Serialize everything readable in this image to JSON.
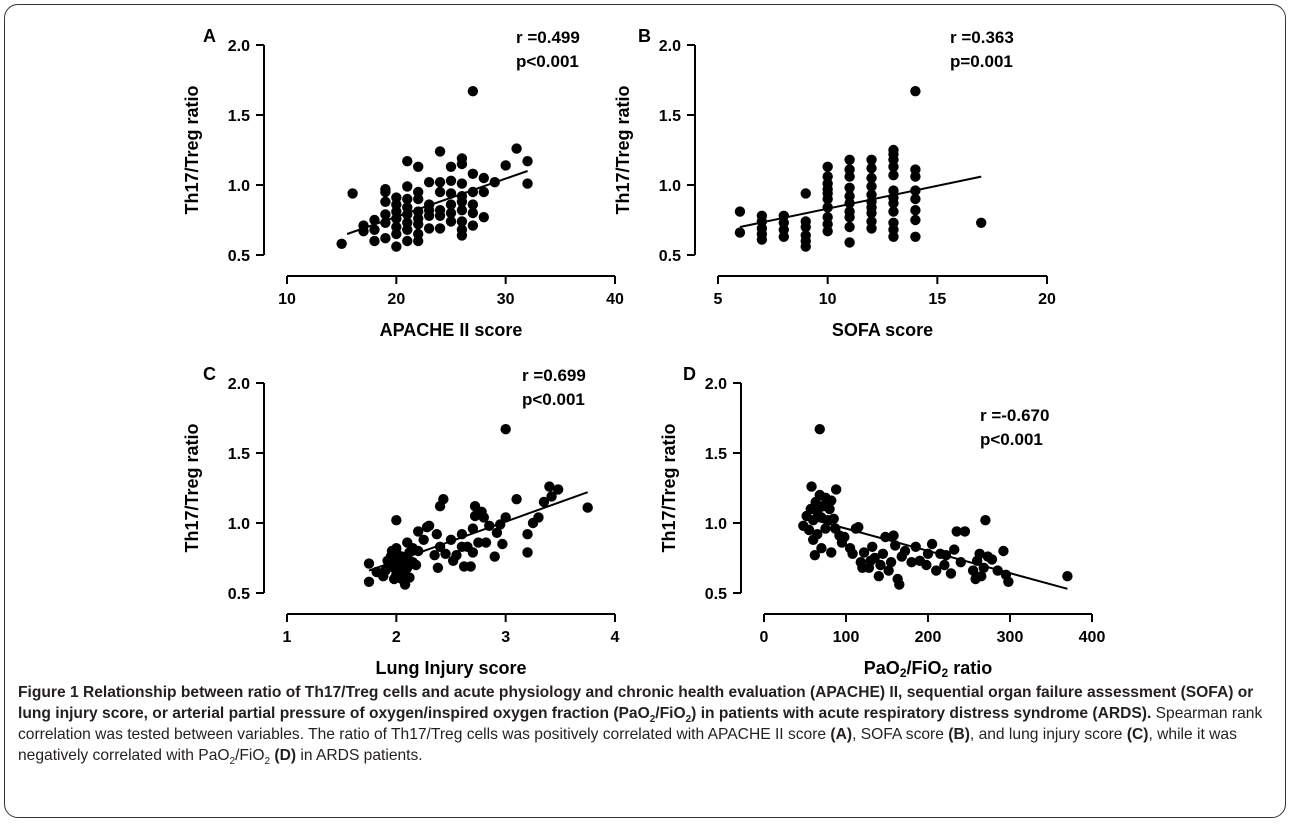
{
  "chart_data": [
    {
      "type": "scatter",
      "panel_label": "A",
      "xlabel": "APACHE II score",
      "ylabel": "Th17/Treg ratio",
      "xlim": [
        10,
        40
      ],
      "ylim": [
        0.5,
        2.0
      ],
      "xticks": [
        "10",
        "20",
        "30",
        "40"
      ],
      "yticks": [
        "0.5",
        "1.0",
        "1.5",
        "2.0"
      ],
      "stat_r": "r =0.499",
      "stat_p": "p<0.001",
      "trend_line": [
        [
          15.5,
          0.65
        ],
        [
          32,
          1.1
        ]
      ],
      "points": [
        [
          15,
          0.58
        ],
        [
          16,
          0.94
        ],
        [
          17,
          0.67
        ],
        [
          17,
          0.71
        ],
        [
          18,
          0.6
        ],
        [
          18,
          0.68
        ],
        [
          18,
          0.75
        ],
        [
          19,
          0.62
        ],
        [
          19,
          0.73
        ],
        [
          19,
          0.79
        ],
        [
          19,
          0.88
        ],
        [
          19,
          0.95
        ],
        [
          19,
          0.97
        ],
        [
          20,
          0.56
        ],
        [
          20,
          0.65
        ],
        [
          20,
          0.7
        ],
        [
          20,
          0.76
        ],
        [
          20,
          0.81
        ],
        [
          20,
          0.86
        ],
        [
          20,
          0.91
        ],
        [
          21,
          0.6
        ],
        [
          21,
          0.68
        ],
        [
          21,
          0.73
        ],
        [
          21,
          0.79
        ],
        [
          21,
          0.84
        ],
        [
          21,
          0.9
        ],
        [
          21,
          0.99
        ],
        [
          21,
          1.17
        ],
        [
          22,
          0.6
        ],
        [
          22,
          0.65
        ],
        [
          22,
          0.72
        ],
        [
          22,
          0.76
        ],
        [
          22,
          0.81
        ],
        [
          22,
          0.9
        ],
        [
          22,
          0.95
        ],
        [
          22,
          1.13
        ],
        [
          23,
          0.69
        ],
        [
          23,
          0.78
        ],
        [
          23,
          0.82
        ],
        [
          23,
          0.86
        ],
        [
          23,
          1.02
        ],
        [
          24,
          0.69
        ],
        [
          24,
          0.78
        ],
        [
          24,
          0.82
        ],
        [
          24,
          0.95
        ],
        [
          24,
          1.02
        ],
        [
          24,
          1.24
        ],
        [
          25,
          0.74
        ],
        [
          25,
          0.8
        ],
        [
          25,
          0.86
        ],
        [
          25,
          0.94
        ],
        [
          25,
          1.03
        ],
        [
          25,
          1.13
        ],
        [
          26,
          0.64
        ],
        [
          26,
          0.68
        ],
        [
          26,
          0.74
        ],
        [
          26,
          0.82
        ],
        [
          26,
          0.88
        ],
        [
          26,
          0.92
        ],
        [
          26,
          1.01
        ],
        [
          26,
          1.15
        ],
        [
          26,
          1.19
        ],
        [
          27,
          0.71
        ],
        [
          27,
          0.8
        ],
        [
          27,
          0.86
        ],
        [
          27,
          0.95
        ],
        [
          27,
          1.08
        ],
        [
          27,
          1.67
        ],
        [
          28,
          0.77
        ],
        [
          28,
          0.95
        ],
        [
          28,
          1.05
        ],
        [
          29,
          1.02
        ],
        [
          30,
          1.14
        ],
        [
          31,
          1.26
        ],
        [
          32,
          1.01
        ],
        [
          32,
          1.17
        ]
      ]
    },
    {
      "type": "scatter",
      "panel_label": "B",
      "xlabel": "SOFA score",
      "ylabel": "Th17/Treg ratio",
      "xlim": [
        5,
        20
      ],
      "ylim": [
        0.5,
        2.0
      ],
      "xticks": [
        "5",
        "10",
        "15",
        "20"
      ],
      "yticks": [
        "0.5",
        "1.0",
        "1.5",
        "2.0"
      ],
      "stat_r": "r =0.363",
      "stat_p": "p=0.001",
      "trend_line": [
        [
          6,
          0.7
        ],
        [
          17,
          1.06
        ]
      ],
      "points": [
        [
          6,
          0.66
        ],
        [
          6,
          0.81
        ],
        [
          7,
          0.61
        ],
        [
          7,
          0.65
        ],
        [
          7,
          0.69
        ],
        [
          7,
          0.74
        ],
        [
          7,
          0.78
        ],
        [
          8,
          0.63
        ],
        [
          8,
          0.68
        ],
        [
          8,
          0.73
        ],
        [
          8,
          0.78
        ],
        [
          9,
          0.56
        ],
        [
          9,
          0.6
        ],
        [
          9,
          0.64
        ],
        [
          9,
          0.7
        ],
        [
          9,
          0.74
        ],
        [
          9,
          0.94
        ],
        [
          10,
          0.67
        ],
        [
          10,
          0.72
        ],
        [
          10,
          0.77
        ],
        [
          10,
          0.84
        ],
        [
          10,
          0.9
        ],
        [
          10,
          0.94
        ],
        [
          10,
          0.97
        ],
        [
          10,
          1.01
        ],
        [
          10,
          1.06
        ],
        [
          10,
          1.13
        ],
        [
          11,
          0.59
        ],
        [
          11,
          0.7
        ],
        [
          11,
          0.77
        ],
        [
          11,
          0.81
        ],
        [
          11,
          0.87
        ],
        [
          11,
          0.92
        ],
        [
          11,
          0.98
        ],
        [
          11,
          1.06
        ],
        [
          11,
          1.11
        ],
        [
          11,
          1.18
        ],
        [
          12,
          0.69
        ],
        [
          12,
          0.74
        ],
        [
          12,
          0.8
        ],
        [
          12,
          0.84
        ],
        [
          12,
          0.88
        ],
        [
          12,
          0.93
        ],
        [
          12,
          0.99
        ],
        [
          12,
          1.05
        ],
        [
          12,
          1.12
        ],
        [
          12,
          1.18
        ],
        [
          13,
          0.63
        ],
        [
          13,
          0.68
        ],
        [
          13,
          0.73
        ],
        [
          13,
          0.81
        ],
        [
          13,
          0.87
        ],
        [
          13,
          0.91
        ],
        [
          13,
          0.96
        ],
        [
          13,
          1.07
        ],
        [
          13,
          1.13
        ],
        [
          13,
          1.18
        ],
        [
          13,
          1.22
        ],
        [
          13,
          1.25
        ],
        [
          14,
          0.63
        ],
        [
          14,
          0.75
        ],
        [
          14,
          0.82
        ],
        [
          14,
          0.9
        ],
        [
          14,
          0.96
        ],
        [
          14,
          1.06
        ],
        [
          14,
          1.11
        ],
        [
          14,
          1.67
        ],
        [
          17,
          0.73
        ]
      ]
    },
    {
      "type": "scatter",
      "panel_label": "C",
      "xlabel": "Lung Injury score",
      "ylabel": "Th17/Treg ratio",
      "xlim": [
        1,
        4
      ],
      "ylim": [
        0.5,
        2.0
      ],
      "xticks": [
        "1",
        "2",
        "3",
        "4"
      ],
      "yticks": [
        "0.5",
        "1.0",
        "1.5",
        "2.0"
      ],
      "stat_r": "r =0.699",
      "stat_p": "p<0.001",
      "trend_line": [
        [
          1.75,
          0.66
        ],
        [
          3.75,
          1.22
        ]
      ],
      "points": [
        [
          1.75,
          0.58
        ],
        [
          1.75,
          0.71
        ],
        [
          1.82,
          0.65
        ],
        [
          1.88,
          0.62
        ],
        [
          1.9,
          0.66
        ],
        [
          1.92,
          0.73
        ],
        [
          1.94,
          0.69
        ],
        [
          1.95,
          0.76
        ],
        [
          1.96,
          0.8
        ],
        [
          1.98,
          0.6
        ],
        [
          1.98,
          0.68
        ],
        [
          2.0,
          0.63
        ],
        [
          2.0,
          0.72
        ],
        [
          2.0,
          0.79
        ],
        [
          2.0,
          0.82
        ],
        [
          2.0,
          1.02
        ],
        [
          2.03,
          0.66
        ],
        [
          2.05,
          0.6
        ],
        [
          2.05,
          0.7
        ],
        [
          2.05,
          0.76
        ],
        [
          2.08,
          0.56
        ],
        [
          2.08,
          0.64
        ],
        [
          2.1,
          0.68
        ],
        [
          2.1,
          0.73
        ],
        [
          2.1,
          0.86
        ],
        [
          2.12,
          0.61
        ],
        [
          2.12,
          0.79
        ],
        [
          2.15,
          0.72
        ],
        [
          2.15,
          0.82
        ],
        [
          2.18,
          0.7
        ],
        [
          2.2,
          0.8
        ],
        [
          2.2,
          0.94
        ],
        [
          2.25,
          0.88
        ],
        [
          2.28,
          0.97
        ],
        [
          2.3,
          0.98
        ],
        [
          2.35,
          0.77
        ],
        [
          2.37,
          0.92
        ],
        [
          2.38,
          0.68
        ],
        [
          2.4,
          0.83
        ],
        [
          2.4,
          1.12
        ],
        [
          2.43,
          1.17
        ],
        [
          2.45,
          0.78
        ],
        [
          2.5,
          0.88
        ],
        [
          2.52,
          0.73
        ],
        [
          2.55,
          0.77
        ],
        [
          2.6,
          0.83
        ],
        [
          2.6,
          0.92
        ],
        [
          2.62,
          0.69
        ],
        [
          2.65,
          0.83
        ],
        [
          2.68,
          0.69
        ],
        [
          2.7,
          0.79
        ],
        [
          2.7,
          0.96
        ],
        [
          2.72,
          1.05
        ],
        [
          2.72,
          1.12
        ],
        [
          2.75,
          0.86
        ],
        [
          2.78,
          1.08
        ],
        [
          2.8,
          1.04
        ],
        [
          2.82,
          0.86
        ],
        [
          2.85,
          0.98
        ],
        [
          2.9,
          0.76
        ],
        [
          2.92,
          0.93
        ],
        [
          2.95,
          0.99
        ],
        [
          2.97,
          0.85
        ],
        [
          3.0,
          1.04
        ],
        [
          3.0,
          1.67
        ],
        [
          3.1,
          1.17
        ],
        [
          3.2,
          0.79
        ],
        [
          3.2,
          0.92
        ],
        [
          3.25,
          1.0
        ],
        [
          3.3,
          1.04
        ],
        [
          3.35,
          1.15
        ],
        [
          3.4,
          1.26
        ],
        [
          3.42,
          1.19
        ],
        [
          3.48,
          1.24
        ],
        [
          3.75,
          1.11
        ]
      ]
    },
    {
      "type": "scatter",
      "panel_label": "D",
      "xlabel": "PaO2/FiO2 ratio",
      "xlabel_parts": [
        "PaO",
        "2",
        "/FiO",
        "2",
        " ratio"
      ],
      "ylabel": "Th17/Treg ratio",
      "xlim": [
        0,
        400
      ],
      "ylim": [
        0.5,
        2.0
      ],
      "xticks": [
        "0",
        "100",
        "200",
        "300",
        "400"
      ],
      "yticks": [
        "0.5",
        "1.0",
        "1.5",
        "2.0"
      ],
      "stat_r": "r =-0.670",
      "stat_p": "p<0.001",
      "trend_line": [
        [
          50,
          1.04
        ],
        [
          370,
          0.53
        ]
      ],
      "points": [
        [
          48,
          0.98
        ],
        [
          52,
          1.05
        ],
        [
          55,
          0.95
        ],
        [
          57,
          1.1
        ],
        [
          58,
          1.26
        ],
        [
          60,
          0.88
        ],
        [
          60,
          1.02
        ],
        [
          62,
          0.77
        ],
        [
          63,
          1.15
        ],
        [
          65,
          0.92
        ],
        [
          65,
          1.08
        ],
        [
          68,
          1.2
        ],
        [
          68,
          1.67
        ],
        [
          70,
          0.82
        ],
        [
          70,
          1.04
        ],
        [
          72,
          1.12
        ],
        [
          75,
          0.96
        ],
        [
          75,
          1.18
        ],
        [
          78,
          1.02
        ],
        [
          80,
          1.1
        ],
        [
          82,
          0.79
        ],
        [
          82,
          1.16
        ],
        [
          85,
          1.03
        ],
        [
          87,
          0.96
        ],
        [
          88,
          1.24
        ],
        [
          92,
          0.91
        ],
        [
          95,
          0.86
        ],
        [
          98,
          0.9
        ],
        [
          105,
          0.82
        ],
        [
          108,
          0.78
        ],
        [
          112,
          0.96
        ],
        [
          115,
          0.97
        ],
        [
          118,
          0.72
        ],
        [
          120,
          0.68
        ],
        [
          122,
          0.79
        ],
        [
          128,
          0.68
        ],
        [
          130,
          0.73
        ],
        [
          132,
          0.83
        ],
        [
          135,
          0.75
        ],
        [
          140,
          0.62
        ],
        [
          142,
          0.7
        ],
        [
          145,
          0.78
        ],
        [
          148,
          0.9
        ],
        [
          152,
          0.66
        ],
        [
          155,
          0.72
        ],
        [
          158,
          0.91
        ],
        [
          160,
          0.84
        ],
        [
          163,
          0.6
        ],
        [
          165,
          0.56
        ],
        [
          168,
          0.76
        ],
        [
          172,
          0.8
        ],
        [
          180,
          0.72
        ],
        [
          185,
          0.83
        ],
        [
          190,
          0.73
        ],
        [
          198,
          0.7
        ],
        [
          200,
          0.78
        ],
        [
          205,
          0.85
        ],
        [
          210,
          0.66
        ],
        [
          215,
          0.78
        ],
        [
          220,
          0.7
        ],
        [
          222,
          0.77
        ],
        [
          228,
          0.64
        ],
        [
          232,
          0.81
        ],
        [
          235,
          0.94
        ],
        [
          240,
          0.72
        ],
        [
          245,
          0.94
        ],
        [
          255,
          0.66
        ],
        [
          258,
          0.6
        ],
        [
          260,
          0.73
        ],
        [
          263,
          0.78
        ],
        [
          265,
          0.62
        ],
        [
          268,
          0.68
        ],
        [
          270,
          1.02
        ],
        [
          273,
          0.76
        ],
        [
          278,
          0.74
        ],
        [
          285,
          0.66
        ],
        [
          292,
          0.8
        ],
        [
          295,
          0.63
        ],
        [
          298,
          0.58
        ],
        [
          370,
          0.62
        ]
      ]
    }
  ],
  "caption": {
    "fig_label": "Figure 1",
    "bold_parts": [
      " Relationship between ratio of Th17/Treg cells and acute physiology and chronic health evaluation (APACHE) II, sequential organ failure assessment (SOFA) or lung injury score, or arterial partial pressure of oxygen/inspired oxygen fraction (PaO",
      "2",
      "/FiO",
      "2",
      ") in patients with acute respiratory distress syndrome (ARDS)."
    ],
    "normal_parts": [
      " Spearman rank correlation was tested between variables. The ratio of Th17/Treg cells was positively correlated with APACHE II score ",
      "(A)",
      ", SOFA score ",
      "(B)",
      ", and lung injury score ",
      "(C)",
      ", while it was negatively correlated with PaO",
      "2",
      "/FiO",
      "2",
      " ",
      "(D)",
      " in ARDS patients."
    ]
  }
}
